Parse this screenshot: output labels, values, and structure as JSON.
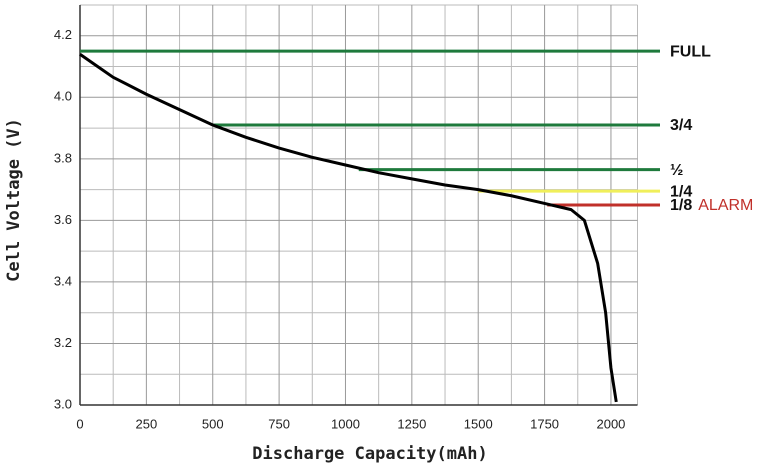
{
  "chart_data": {
    "type": "line",
    "xlabel": "Discharge Capacity(mAh)",
    "ylabel": "Cell Voltage (V)",
    "x": [
      0,
      50,
      125,
      250,
      375,
      500,
      625,
      750,
      875,
      1000,
      1125,
      1250,
      1375,
      1500,
      1625,
      1750,
      1850,
      1900,
      1950,
      1980,
      2000,
      2020
    ],
    "series": [
      {
        "color": "#000000",
        "values": [
          4.14,
          4.11,
          4.065,
          4.01,
          3.96,
          3.91,
          3.87,
          3.835,
          3.805,
          3.78,
          3.755,
          3.735,
          3.715,
          3.7,
          3.68,
          3.655,
          3.635,
          3.6,
          3.46,
          3.3,
          3.12,
          3.01
        ]
      }
    ],
    "xlim": [
      0,
      2100
    ],
    "ylim": [
      3.0,
      4.3
    ],
    "xticks": [
      0,
      250,
      500,
      750,
      1000,
      1250,
      1500,
      1750,
      2000
    ],
    "yticks": [
      {
        "value": 3.0,
        "label": "3.0"
      },
      3.2,
      3.4,
      3.6,
      3.8,
      {
        "value": 4.0,
        "label": "4.0"
      },
      4.2
    ],
    "xgrid": [
      125,
      375,
      625,
      875,
      1125,
      1375,
      1625,
      1875,
      2100
    ],
    "ygrid": [
      3.1,
      3.3,
      3.5,
      3.7,
      3.9,
      4.1,
      4.3
    ],
    "grid": true,
    "levels": [
      {
        "label": "FULL",
        "value": 4.15,
        "start": 0,
        "color": "#1e7a3c"
      },
      {
        "label": "3/4",
        "value": 3.91,
        "start": 500,
        "color": "#1e7a3c"
      },
      {
        "label": "½",
        "value": 3.765,
        "start": 1050,
        "color": "#1e7a3c"
      },
      {
        "label": "1/4",
        "value": 3.695,
        "start": 1500,
        "color": "#f0ef5a"
      },
      {
        "label": "1/8",
        "value": 3.65,
        "start": 1760,
        "color": "#c0302a",
        "note": "ALARM"
      }
    ]
  }
}
